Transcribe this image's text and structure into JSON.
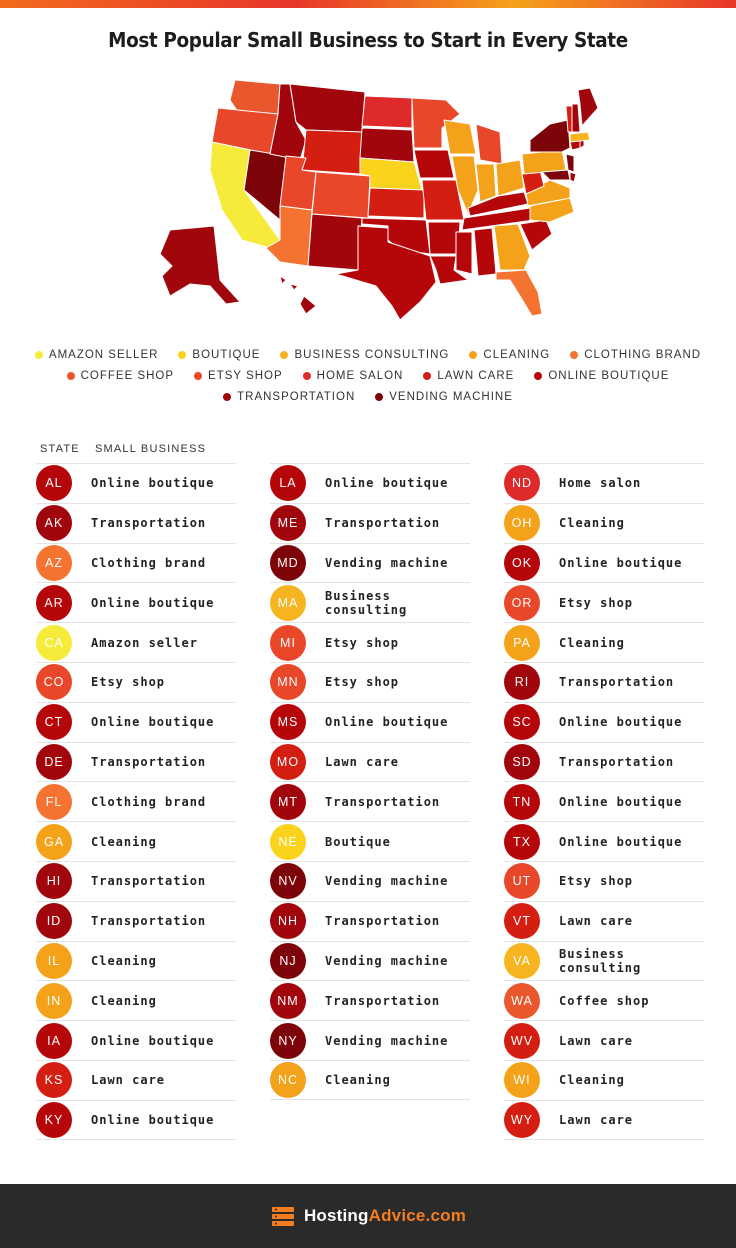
{
  "title": "Most Popular Small Business to Start in Every State",
  "colors": {
    "amazon_seller": "#f6ea3a",
    "boutique": "#f9d31c",
    "business_consulting": "#f7b421",
    "cleaning": "#f5a21b",
    "clothing_brand": "#f47330",
    "coffee_shop": "#e8582c",
    "etsy_shop": "#e8472a",
    "home_salon": "#de2a2a",
    "lawn_care": "#d41e12",
    "online_boutique": "#b5060a",
    "transportation": "#a0060c",
    "vending_machine": "#7d0509"
  },
  "legend": [
    [
      {
        "label": "Amazon seller",
        "color_key": "amazon_seller"
      },
      {
        "label": "Boutique",
        "color_key": "boutique"
      },
      {
        "label": "Business consulting",
        "color_key": "business_consulting"
      },
      {
        "label": "Cleaning",
        "color_key": "cleaning"
      },
      {
        "label": "Clothing brand",
        "color_key": "clothing_brand"
      }
    ],
    [
      {
        "label": "Coffee shop",
        "color_key": "coffee_shop"
      },
      {
        "label": "Etsy shop",
        "color_key": "etsy_shop"
      },
      {
        "label": "Home salon",
        "color_key": "home_salon"
      },
      {
        "label": "Lawn care",
        "color_key": "lawn_care"
      },
      {
        "label": "Online boutique",
        "color_key": "online_boutique"
      }
    ],
    [
      {
        "label": "Transportation",
        "color_key": "transportation"
      },
      {
        "label": "Vending machine",
        "color_key": "vending_machine"
      }
    ]
  ],
  "table_headers": {
    "state": "STATE",
    "business": "SMALL BUSINESS"
  },
  "columns": [
    [
      {
        "state": "AL",
        "business": "Online boutique",
        "color_key": "online_boutique"
      },
      {
        "state": "AK",
        "business": "Transportation",
        "color_key": "transportation"
      },
      {
        "state": "AZ",
        "business": "Clothing brand",
        "color_key": "clothing_brand"
      },
      {
        "state": "AR",
        "business": "Online boutique",
        "color_key": "online_boutique"
      },
      {
        "state": "CA",
        "business": "Amazon seller",
        "color_key": "amazon_seller"
      },
      {
        "state": "CO",
        "business": "Etsy shop",
        "color_key": "etsy_shop"
      },
      {
        "state": "CT",
        "business": "Online boutique",
        "color_key": "online_boutique"
      },
      {
        "state": "DE",
        "business": "Transportation",
        "color_key": "transportation"
      },
      {
        "state": "FL",
        "business": "Clothing brand",
        "color_key": "clothing_brand"
      },
      {
        "state": "GA",
        "business": "Cleaning",
        "color_key": "cleaning"
      },
      {
        "state": "HI",
        "business": "Transportation",
        "color_key": "transportation"
      },
      {
        "state": "ID",
        "business": "Transportation",
        "color_key": "transportation"
      },
      {
        "state": "IL",
        "business": "Cleaning",
        "color_key": "cleaning"
      },
      {
        "state": "IN",
        "business": "Cleaning",
        "color_key": "cleaning"
      },
      {
        "state": "IA",
        "business": "Online boutique",
        "color_key": "online_boutique"
      },
      {
        "state": "KS",
        "business": "Lawn care",
        "color_key": "lawn_care"
      },
      {
        "state": "KY",
        "business": "Online boutique",
        "color_key": "online_boutique"
      }
    ],
    [
      {
        "state": "LA",
        "business": "Online boutique",
        "color_key": "online_boutique"
      },
      {
        "state": "ME",
        "business": "Transportation",
        "color_key": "transportation"
      },
      {
        "state": "MD",
        "business": "Vending machine",
        "color_key": "vending_machine"
      },
      {
        "state": "MA",
        "business": "Business consulting",
        "color_key": "business_consulting"
      },
      {
        "state": "MI",
        "business": "Etsy shop",
        "color_key": "etsy_shop"
      },
      {
        "state": "MN",
        "business": "Etsy shop",
        "color_key": "etsy_shop"
      },
      {
        "state": "MS",
        "business": "Online boutique",
        "color_key": "online_boutique"
      },
      {
        "state": "MO",
        "business": "Lawn care",
        "color_key": "lawn_care"
      },
      {
        "state": "MT",
        "business": "Transportation",
        "color_key": "transportation"
      },
      {
        "state": "NE",
        "business": "Boutique",
        "color_key": "boutique"
      },
      {
        "state": "NV",
        "business": "Vending machine",
        "color_key": "vending_machine"
      },
      {
        "state": "NH",
        "business": "Transportation",
        "color_key": "transportation"
      },
      {
        "state": "NJ",
        "business": "Vending machine",
        "color_key": "vending_machine"
      },
      {
        "state": "NM",
        "business": "Transportation",
        "color_key": "transportation"
      },
      {
        "state": "NY",
        "business": "Vending machine",
        "color_key": "vending_machine"
      },
      {
        "state": "NC",
        "business": "Cleaning",
        "color_key": "cleaning"
      }
    ],
    [
      {
        "state": "ND",
        "business": "Home salon",
        "color_key": "home_salon"
      },
      {
        "state": "OH",
        "business": "Cleaning",
        "color_key": "cleaning"
      },
      {
        "state": "OK",
        "business": "Online boutique",
        "color_key": "online_boutique"
      },
      {
        "state": "OR",
        "business": "Etsy shop",
        "color_key": "etsy_shop"
      },
      {
        "state": "PA",
        "business": "Cleaning",
        "color_key": "cleaning"
      },
      {
        "state": "RI",
        "business": "Transportation",
        "color_key": "transportation"
      },
      {
        "state": "SC",
        "business": "Online boutique",
        "color_key": "online_boutique"
      },
      {
        "state": "SD",
        "business": "Transportation",
        "color_key": "transportation"
      },
      {
        "state": "TN",
        "business": "Online boutique",
        "color_key": "online_boutique"
      },
      {
        "state": "TX",
        "business": "Online boutique",
        "color_key": "online_boutique"
      },
      {
        "state": "UT",
        "business": "Etsy shop",
        "color_key": "etsy_shop"
      },
      {
        "state": "VT",
        "business": "Lawn care",
        "color_key": "lawn_care"
      },
      {
        "state": "VA",
        "business": "Business consulting",
        "color_key": "business_consulting"
      },
      {
        "state": "WA",
        "business": "Coffee shop",
        "color_key": "coffee_shop"
      },
      {
        "state": "WV",
        "business": "Lawn care",
        "color_key": "lawn_care"
      },
      {
        "state": "WI",
        "business": "Cleaning",
        "color_key": "cleaning"
      },
      {
        "state": "WY",
        "business": "Lawn care",
        "color_key": "lawn_care"
      }
    ]
  ],
  "footer": {
    "brand_main": "Hosting",
    "brand_accent": "Advice.com",
    "logo_icon": "server-stack-icon"
  }
}
